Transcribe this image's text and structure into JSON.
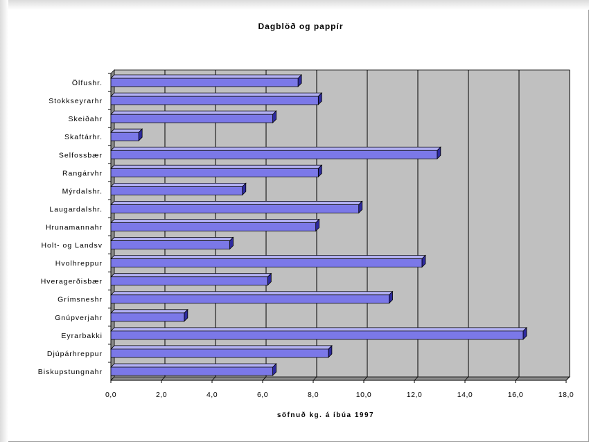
{
  "chart_data": {
    "type": "bar",
    "orientation": "horizontal",
    "title": "Dagblöð og pappír",
    "xlabel": "söfnuð kg. á íbúa 1997",
    "ylabel": "",
    "xlim": [
      0,
      18
    ],
    "x_ticks": [
      "0,0",
      "2,0",
      "4,0",
      "6,0",
      "8,0",
      "10,0",
      "12,0",
      "14,0",
      "16,0",
      "18,0"
    ],
    "grid": true,
    "legend": "none",
    "categories": [
      "Ölfushr.",
      "Stokkseyrarhr",
      "Skeiðahr",
      "Skaftárhr.",
      "Selfossbær",
      "Rangárvhr",
      "Mýrdalshr.",
      "Laugardalshr.",
      "Hrunamannahr",
      "Holt- og Landsv",
      "Hvolhreppur",
      "Hveragerðisbær",
      "Grímsneshr",
      "Gnúpverjahr",
      "Eyrarbakki",
      "Djúpárhreppur",
      "Biskupstungnahr"
    ],
    "values": [
      7.4,
      8.2,
      6.4,
      1.1,
      12.9,
      8.2,
      5.2,
      9.8,
      8.1,
      4.7,
      12.3,
      6.2,
      11.0,
      2.9,
      16.3,
      8.6,
      6.4
    ],
    "colors": {
      "bar_front": "#7b78e8",
      "bar_top": "#b4b2f6",
      "bar_end": "#2e2a9e",
      "plot_bg": "#c0c0c0",
      "grid": "#000000"
    }
  }
}
